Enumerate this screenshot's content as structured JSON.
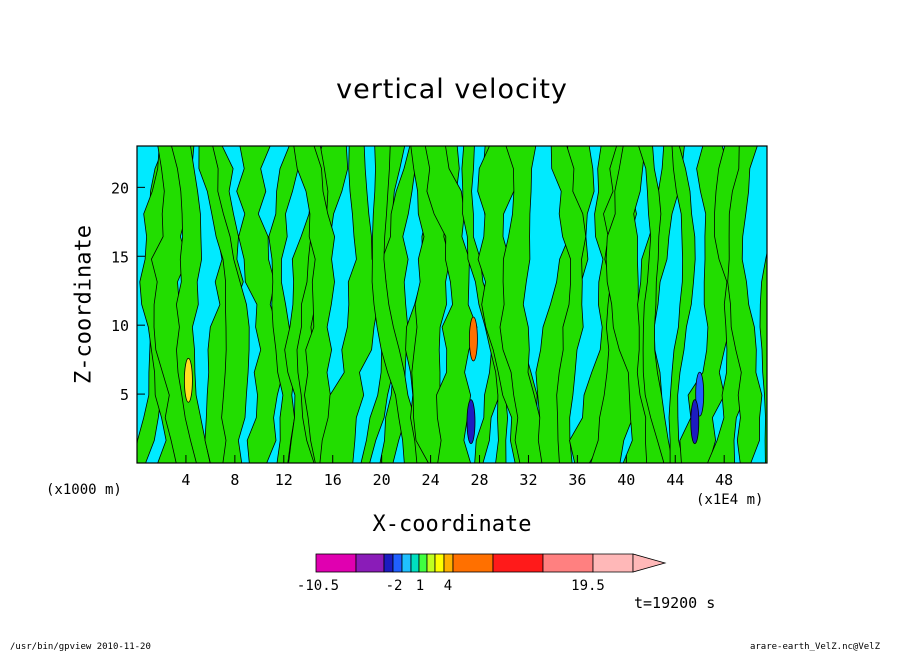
{
  "chart_data": {
    "type": "heatmap",
    "title": "vertical velocity",
    "xlabel": "X-coordinate",
    "ylabel": "Z-coordinate",
    "x_unit_left": "(x1000 m)",
    "x_unit_right": "(x1E4 m)",
    "xlim": [
      0,
      51.5
    ],
    "ylim": [
      0,
      23
    ],
    "x_ticks": [
      4,
      8,
      12,
      16,
      20,
      24,
      28,
      32,
      36,
      40,
      44,
      48
    ],
    "y_ticks": [
      5,
      10,
      15,
      20
    ],
    "colorbar": {
      "levels": [
        -10.5,
        -8,
        -6,
        -4,
        -2,
        -1,
        0,
        1,
        2,
        3,
        4,
        8,
        12,
        16,
        19.5
      ],
      "colors": [
        "#e000b0",
        "#8a1cb8",
        "#1c1cc0",
        "#2060ff",
        "#20c0ff",
        "#00e0c0",
        "#40ff40",
        "#c0ff20",
        "#ffff00",
        "#ffb000",
        "#ff7000",
        "#ff1a1a",
        "#ff8080",
        "#ffb8b8"
      ],
      "tick_labels": [
        "-10.5",
        "-2",
        "1",
        "4",
        "19.5"
      ]
    },
    "background_fields": [
      "#00eaff",
      "#22dd00"
    ],
    "grid": false
  },
  "time_label": "t=19200 s",
  "footer": {
    "program": "/usr/bin/gpview  2010-11-20",
    "source": "arare-earth_VelZ.nc@VelZ"
  }
}
